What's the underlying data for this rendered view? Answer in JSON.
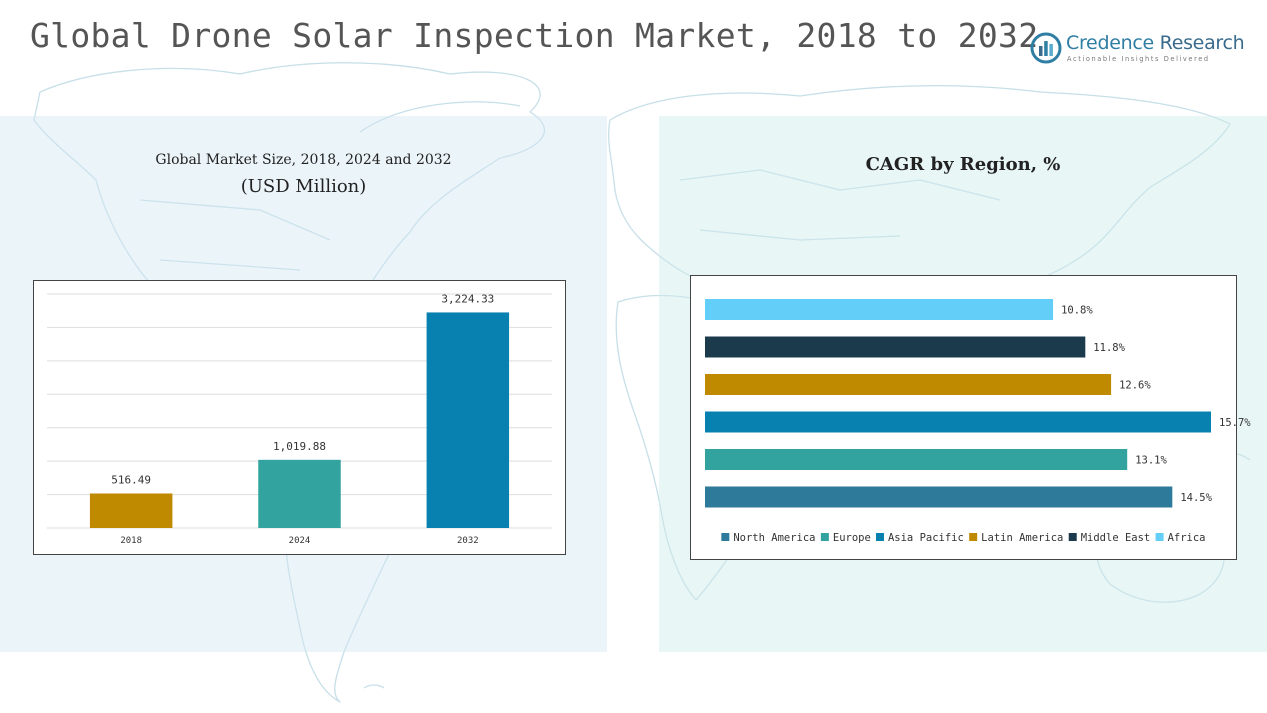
{
  "title": "Global Drone Solar Inspection Market, 2018 to 2032",
  "logo": {
    "name_part1": "Credence",
    "name_part2": "Research",
    "tagline": "Actionable Insights Delivered"
  },
  "chart_data": [
    {
      "type": "bar",
      "title": "Global Market Size, 2018, 2024 and 2032",
      "subtitle": "(USD Million)",
      "categories": [
        "2018",
        "2024",
        "2032"
      ],
      "values": [
        516.49,
        1019.88,
        3224.33
      ],
      "value_labels": [
        "516.49",
        "1,019.88",
        "3,224.33"
      ],
      "ylim": [
        0,
        3500
      ],
      "grid": true,
      "colors": [
        "#c08a00",
        "#33a3a0",
        "#0880b0"
      ]
    },
    {
      "type": "bar",
      "orientation": "horizontal",
      "title": "CAGR by Region, %",
      "categories": [
        "Africa",
        "Middle East",
        "Latin America",
        "Asia Pacific",
        "Europe",
        "North America"
      ],
      "values": [
        10.8,
        11.8,
        12.6,
        15.7,
        13.1,
        14.5
      ],
      "value_labels": [
        "10.8%",
        "11.8%",
        "12.6%",
        "15.7%",
        "13.1%",
        "14.5%"
      ],
      "xlim": [
        0,
        15.7
      ],
      "colors": [
        "#63cef8",
        "#1b3a4b",
        "#c08a00",
        "#0880b0",
        "#33a3a0",
        "#2d7a9a"
      ],
      "legend": {
        "placement": "bottom",
        "items": [
          {
            "name": "North America",
            "color": "#2d7a9a"
          },
          {
            "name": "Europe",
            "color": "#33a3a0"
          },
          {
            "name": "Asia Pacific",
            "color": "#0880b0"
          },
          {
            "name": "Latin America",
            "color": "#c08a00"
          },
          {
            "name": "Middle East",
            "color": "#1b3a4b"
          },
          {
            "name": "Africa",
            "color": "#63cef8"
          }
        ]
      }
    }
  ]
}
